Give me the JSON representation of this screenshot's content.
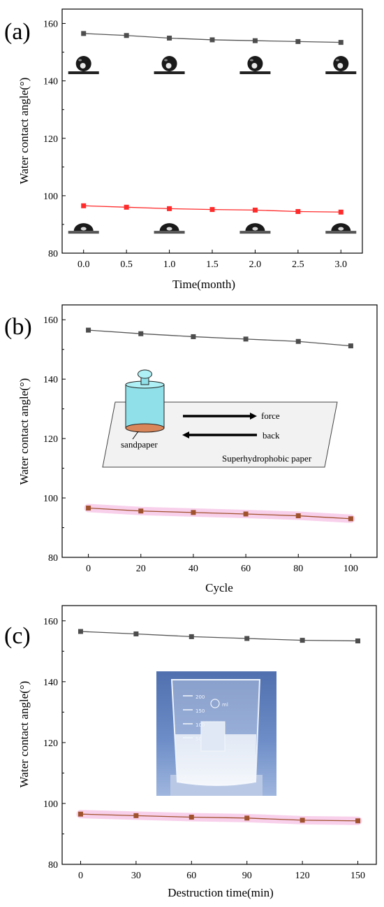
{
  "panels": [
    {
      "label": "(a)",
      "xlabel": "Time(month)",
      "ylabel": "Water contact angle(°)"
    },
    {
      "label": "(b)",
      "xlabel": "Cycle",
      "ylabel": "Water contact angle(°)",
      "inset": {
        "force_label": "force",
        "back_label": "back",
        "sandpaper_label": "sandpaper",
        "paper_label": "Superhydrophobic paper"
      }
    },
    {
      "label": "(c)",
      "xlabel": "Destruction time(min)",
      "ylabel": "Water contact angle(°)",
      "beaker": {
        "marks": [
          "200",
          "150",
          "100",
          "50"
        ],
        "logo_text": "ml"
      }
    }
  ],
  "chart_data": [
    {
      "type": "line",
      "x": [
        0.0,
        0.5,
        1.0,
        1.5,
        2.0,
        2.5,
        3.0
      ],
      "xticks": [
        "0.0",
        "0.5",
        "1.0",
        "1.5",
        "2.0",
        "2.5",
        "3.0"
      ],
      "xlim": [
        -0.25,
        3.25
      ],
      "ylim": [
        80,
        165
      ],
      "yticks": [
        80,
        100,
        120,
        140,
        160
      ],
      "series": [
        {
          "color": "#555555",
          "marker": "#4d4d4d",
          "values": [
            156.5,
            155.8,
            154.9,
            154.3,
            154.0,
            153.7,
            153.4
          ]
        },
        {
          "color": "#ff2a2a",
          "marker": "#ff2a2a",
          "values": [
            96.5,
            96.0,
            95.5,
            95.2,
            95.0,
            94.5,
            94.3
          ]
        }
      ],
      "droplets": {
        "superhydrophobic_x": [
          0.0,
          1.0,
          2.0,
          3.0
        ],
        "hydrophilic_x": [
          0.0,
          1.0,
          2.0,
          3.0
        ]
      }
    },
    {
      "type": "line",
      "x": [
        0,
        20,
        40,
        60,
        80,
        100
      ],
      "xticks": [
        "0",
        "20",
        "40",
        "60",
        "80",
        "100"
      ],
      "xlim": [
        -10,
        110
      ],
      "ylim": [
        80,
        165
      ],
      "yticks": [
        80,
        100,
        120,
        140,
        160
      ],
      "series": [
        {
          "color": "#555555",
          "marker": "#4d4d4d",
          "values": [
            156.5,
            155.3,
            154.3,
            153.5,
            152.7,
            151.2
          ]
        },
        {
          "color": "#a0522d",
          "marker": "#a0522d",
          "values": [
            96.6,
            95.6,
            95.1,
            94.6,
            94.0,
            93.0
          ]
        }
      ]
    },
    {
      "type": "line",
      "x": [
        0,
        30,
        60,
        90,
        120,
        150
      ],
      "xticks": [
        "0",
        "30",
        "60",
        "90",
        "120",
        "150"
      ],
      "xlim": [
        -10,
        160
      ],
      "ylim": [
        80,
        165
      ],
      "yticks": [
        80,
        100,
        120,
        140,
        160
      ],
      "series": [
        {
          "color": "#555555",
          "marker": "#4d4d4d",
          "values": [
            156.5,
            155.7,
            154.8,
            154.2,
            153.6,
            153.4
          ]
        },
        {
          "color": "#a0522d",
          "marker": "#a0522d",
          "values": [
            96.5,
            96.0,
            95.5,
            95.2,
            94.5,
            94.3
          ]
        }
      ]
    }
  ],
  "colors": {
    "axis": "#000000",
    "inset_paper": "#f2f2f2",
    "cylinder": "#8fe0e8",
    "sandpaper": "#d9875a",
    "beaker_bg": "#5b7db8",
    "highlight": "#f7c8e8"
  }
}
